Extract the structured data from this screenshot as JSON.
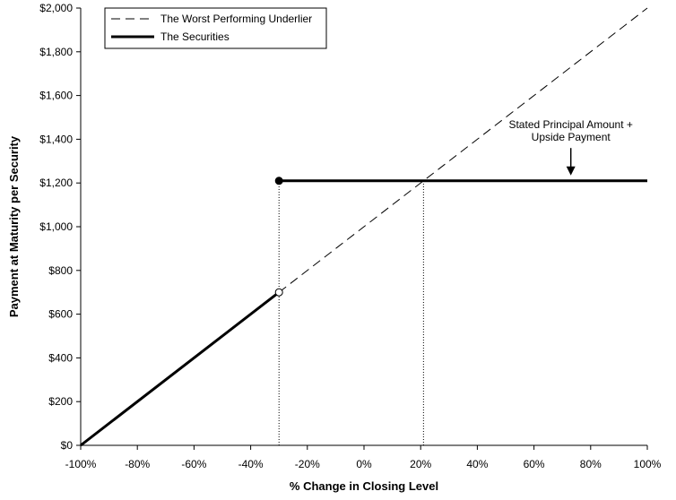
{
  "chart_data": {
    "type": "line",
    "xlabel": "% Change in Closing Level",
    "ylabel": "Payment at Maturity per Security",
    "xlim": [
      -100,
      100
    ],
    "ylim": [
      0,
      2000
    ],
    "x_ticks": [
      -100,
      -80,
      -60,
      -40,
      -20,
      0,
      20,
      40,
      60,
      80,
      100
    ],
    "x_tick_labels": [
      "-100%",
      "-80%",
      "-60%",
      "-40%",
      "-20%",
      "0%",
      "20%",
      "40%",
      "60%",
      "80%",
      "100%"
    ],
    "y_ticks": [
      0,
      200,
      400,
      600,
      800,
      1000,
      1200,
      1400,
      1600,
      1800,
      2000
    ],
    "y_tick_labels": [
      "$0",
      "$200",
      "$400",
      "$600",
      "$800",
      "$1,000",
      "$1,200",
      "$1,400",
      "$1,600",
      "$1,800",
      "$2,000"
    ],
    "grid": false,
    "legend_position": "top-left",
    "series": [
      {
        "name": "The Worst Performing Underlier",
        "style": "dashed",
        "color": "#000000",
        "points": [
          [
            -30,
            700
          ],
          [
            100,
            2000
          ]
        ]
      },
      {
        "name": "The Securities",
        "style": "solid",
        "color": "#000000",
        "segments": [
          [
            [
              -100,
              0
            ],
            [
              -30,
              700
            ]
          ],
          [
            [
              -30,
              1210
            ],
            [
              100,
              1210
            ]
          ]
        ]
      }
    ],
    "markers": [
      {
        "x": -30,
        "y": 1210,
        "fill": "filled"
      },
      {
        "x": -30,
        "y": 700,
        "fill": "open"
      }
    ],
    "reference_lines": [
      {
        "x": -30,
        "y_from": 0,
        "y_to": 1210,
        "style": "dotted"
      },
      {
        "x": 21,
        "y_from": 0,
        "y_to": 1210,
        "style": "dotted"
      }
    ],
    "annotations": [
      {
        "lines": [
          "Stated Principal Amount +",
          "Upside Payment"
        ],
        "x": 73,
        "y": 1450,
        "arrow_to": [
          73,
          1210
        ]
      }
    ]
  }
}
